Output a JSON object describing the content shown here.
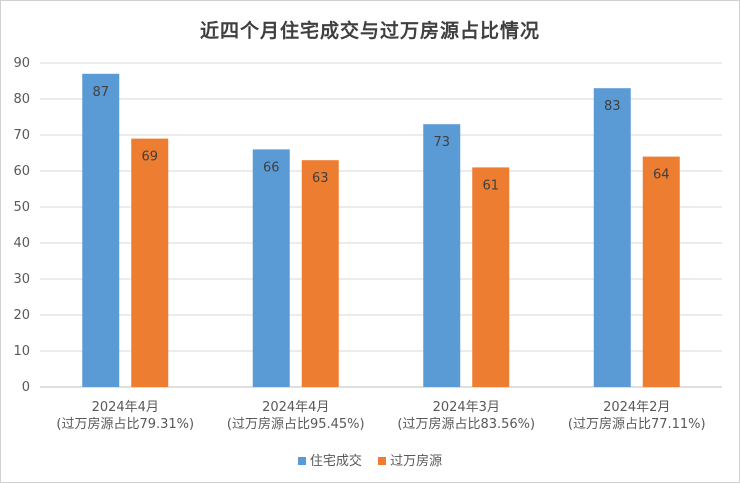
{
  "chart_data": {
    "type": "bar",
    "title": "近四个月住宅成交与过万房源占比情况",
    "categories": [
      [
        "2024年4月",
        "(过万房源占比79.31%)"
      ],
      [
        "2024年4月",
        "(过万房源占比95.45%)"
      ],
      [
        "2024年3月",
        "(过万房源占比83.56%)"
      ],
      [
        "2024年2月",
        "(过万房源占比77.11%)"
      ]
    ],
    "series": [
      {
        "name": "住宅成交",
        "color": "#5b9bd5",
        "values": [
          87,
          66,
          73,
          83
        ]
      },
      {
        "name": "过万房源",
        "color": "#ed7d31",
        "values": [
          69,
          63,
          61,
          64
        ]
      }
    ],
    "ylim": [
      0,
      90
    ],
    "yticks": [
      0,
      10,
      20,
      30,
      40,
      50,
      60,
      70,
      80,
      90
    ],
    "grid": true,
    "legend": "bottom",
    "data_labels": true
  }
}
